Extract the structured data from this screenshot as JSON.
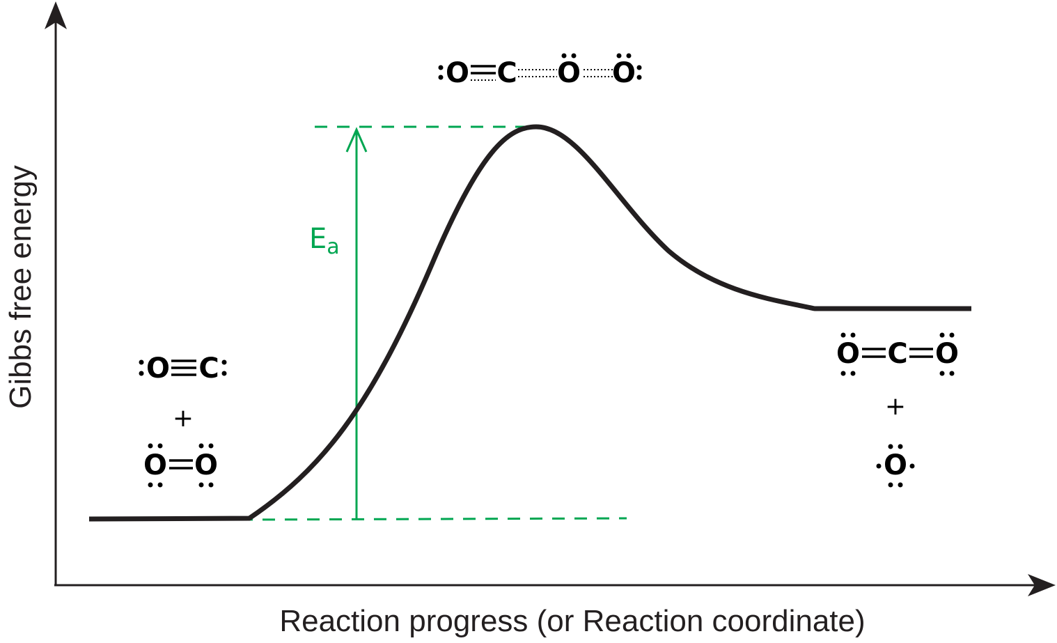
{
  "axes": {
    "y_label": "Gibbs free energy",
    "x_label": "Reaction progress (or Reaction coordinate)"
  },
  "activation_energy": {
    "symbol": "E",
    "subscript": "a",
    "color": "#00a651"
  },
  "curve": {
    "color": "#231f20"
  },
  "reactants": {
    "molecule_1": "CO",
    "plus": "+",
    "molecule_2": "O2"
  },
  "transition_state": {
    "molecule": "OC···O···O"
  },
  "products": {
    "molecule_1": "CO2",
    "plus": "+",
    "molecule_2": "O"
  }
}
